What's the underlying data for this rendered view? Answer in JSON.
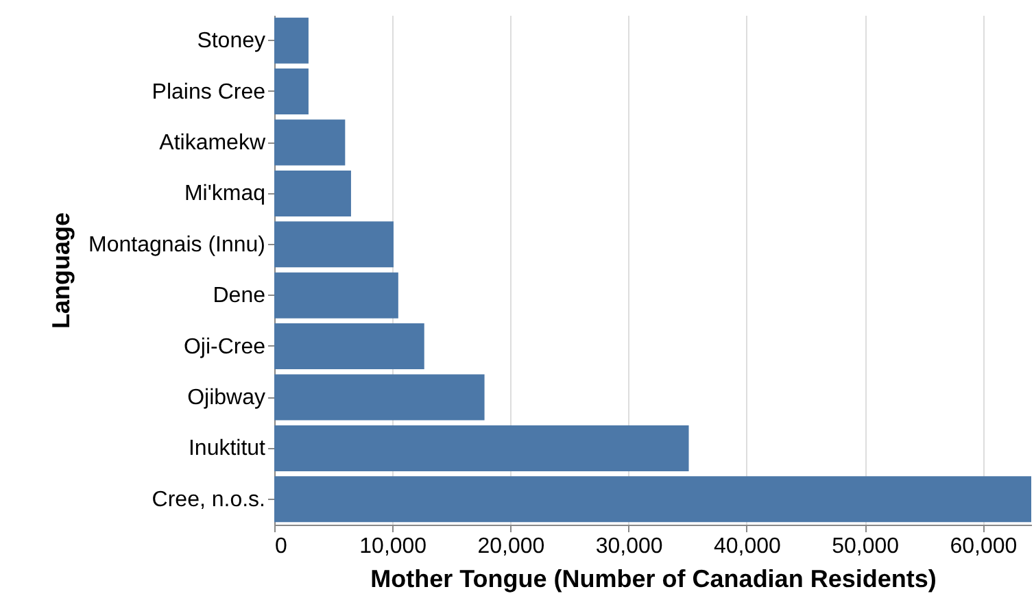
{
  "chart_data": {
    "type": "bar",
    "orientation": "horizontal",
    "xlabel": "Mother Tongue (Number of Canadian Residents)",
    "ylabel": "Language",
    "categories": [
      "Stoney",
      "Plains Cree",
      "Atikamekw",
      "Mi'kmaq",
      "Montagnais (Innu)",
      "Dene",
      "Oji-Cree",
      "Ojibway",
      "Inuktitut",
      "Cree, n.o.s."
    ],
    "values": [
      2900,
      2900,
      6000,
      6500,
      10100,
      10500,
      12700,
      17800,
      35100,
      64100
    ],
    "color": "#4c78a8",
    "xlim": [
      0,
      64100
    ],
    "xticks": [
      0,
      {
        "value": 10000,
        "label": "10,000"
      },
      {
        "value": 20000,
        "label": "20,000"
      },
      {
        "value": 30000,
        "label": "30,000"
      },
      {
        "value": 40000,
        "label": "40,000"
      },
      {
        "value": 50000,
        "label": "50,000"
      },
      {
        "value": 60000,
        "label": "60,000"
      }
    ],
    "grid": "x"
  }
}
